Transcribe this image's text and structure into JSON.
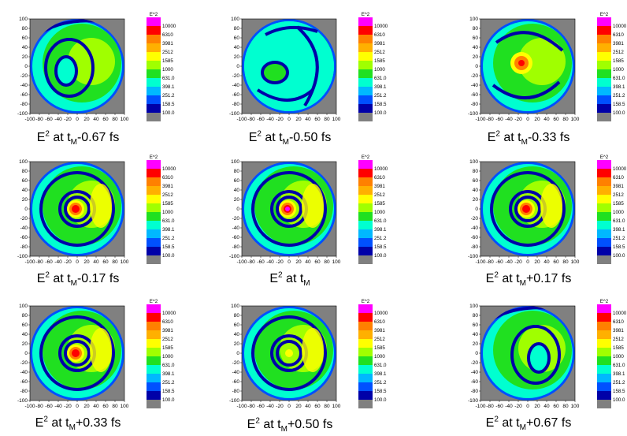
{
  "chart_data": {
    "type": "heatmap",
    "colorbar": {
      "title": "E^2",
      "levels": [
        "10000",
        "6310",
        "3981",
        "2512",
        "1585",
        "1000",
        "631.0",
        "398.1",
        "251.2",
        "158.5",
        "100.0"
      ],
      "colors": [
        "#ff00ff",
        "#ff0000",
        "#ff8000",
        "#ffb000",
        "#ffff00",
        "#a0ff00",
        "#20e020",
        "#00ffd0",
        "#00b8ff",
        "#0050ff",
        "#0000a8",
        "#808080"
      ]
    },
    "xticks": [
      "-100",
      "-80",
      "-60",
      "-40",
      "-20",
      "0",
      "20",
      "40",
      "60",
      "80",
      "100"
    ],
    "yticks": [
      "100",
      "80",
      "60",
      "40",
      "20",
      "0",
      "-20",
      "-40",
      "-60",
      "-80",
      "-100"
    ],
    "xlim": [
      -100,
      100
    ],
    "ylim": [
      -100,
      100
    ],
    "panels": [
      {
        "caption": {
          "base": "E",
          "sup": "2",
          "mid": " at t",
          "sub": "M",
          "suffix": "-0.67 fs"
        }
      },
      {
        "caption": {
          "base": "E",
          "sup": "2",
          "mid": " at t",
          "sub": "M",
          "suffix": "-0.50 fs"
        }
      },
      {
        "caption": {
          "base": "E",
          "sup": "2",
          "mid": " at t",
          "sub": "M",
          "suffix": "-0.33 fs"
        }
      },
      {
        "caption": {
          "base": "E",
          "sup": "2",
          "mid": " at t",
          "sub": "M",
          "suffix": "-0.17 fs"
        }
      },
      {
        "caption": {
          "base": "E",
          "sup": "2",
          "mid": " at t",
          "sub": "M",
          "suffix": ""
        }
      },
      {
        "caption": {
          "base": "E",
          "sup": "2",
          "mid": " at t",
          "sub": "M",
          "suffix": "+0.17 fs"
        }
      },
      {
        "caption": {
          "base": "E",
          "sup": "2",
          "mid": " at t",
          "sub": "M",
          "suffix": "+0.33 fs"
        }
      },
      {
        "caption": {
          "base": "E",
          "sup": "2",
          "mid": " at t",
          "sub": "M",
          "suffix": "+0.50 fs"
        }
      },
      {
        "caption": {
          "base": "E",
          "sup": "2",
          "mid": " at t",
          "sub": "M",
          "suffix": "+0.67 fs"
        }
      }
    ]
  }
}
